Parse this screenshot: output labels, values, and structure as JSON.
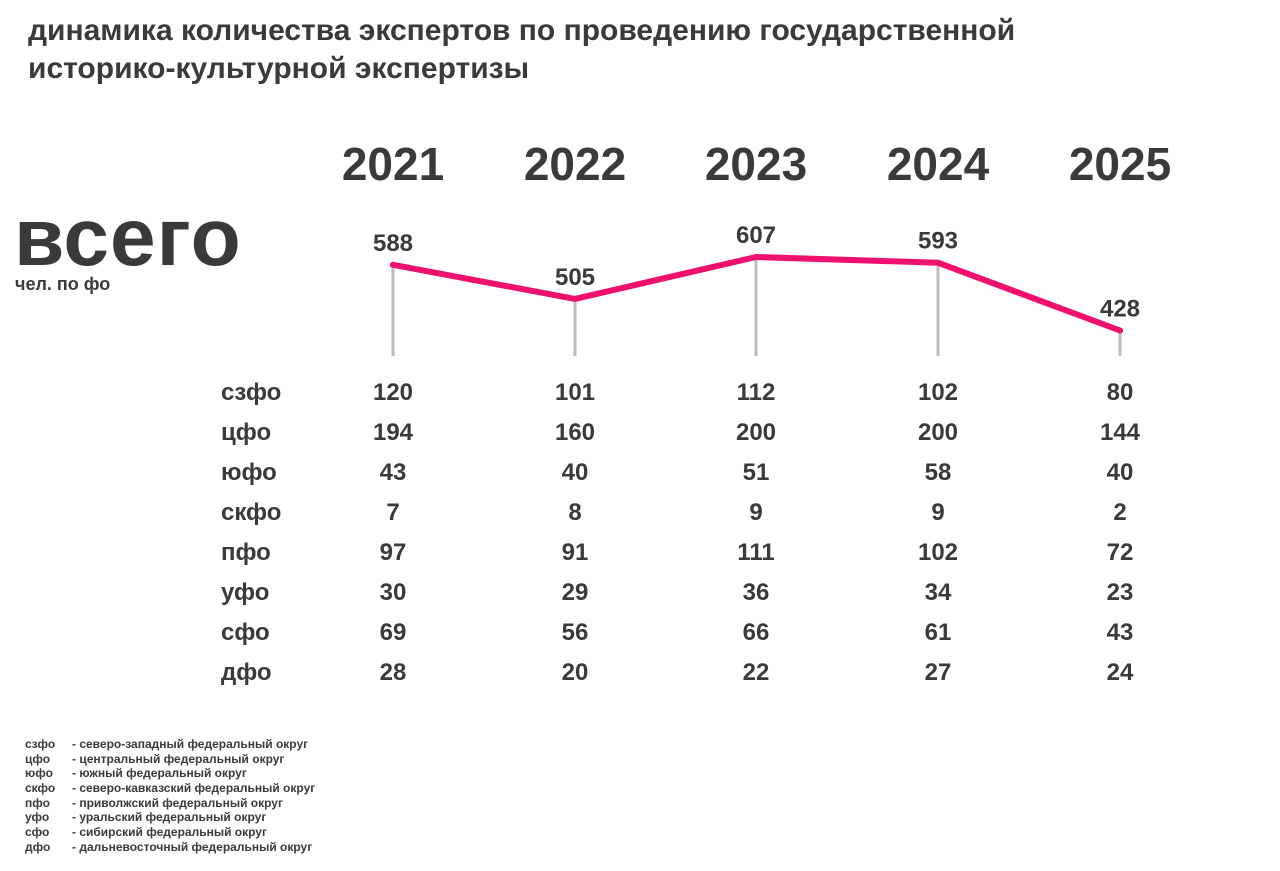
{
  "title_line1": "динамика количества экспертов по проведению государственной",
  "title_line2": "историко-культурной экспертизы",
  "total_label": "всего",
  "unit_label": "чел. по фо",
  "colors": {
    "line": "#f0106e",
    "text": "#3a3a3a",
    "stem": "#bdbdbd"
  },
  "chart_data": {
    "type": "line",
    "categories": [
      "2021",
      "2022",
      "2023",
      "2024",
      "2025"
    ],
    "series": [
      {
        "name": "всего",
        "values": [
          588,
          505,
          607,
          593,
          428
        ]
      }
    ],
    "title": "динамика количества экспертов по проведению государственной историко-культурной экспертизы",
    "ylabel": "чел. по фо"
  },
  "table": {
    "rows": [
      {
        "name": "сзфо",
        "values": [
          "120",
          "101",
          "112",
          "102",
          "80"
        ]
      },
      {
        "name": "цфо",
        "values": [
          "194",
          "160",
          "200",
          "200",
          "144"
        ]
      },
      {
        "name": "юфо",
        "values": [
          "43",
          "40",
          "51",
          "58",
          "40"
        ]
      },
      {
        "name": "скфо",
        "values": [
          "7",
          "8",
          "9",
          "9",
          "2"
        ]
      },
      {
        "name": "пфо",
        "values": [
          "97",
          "91",
          "111",
          "102",
          "72"
        ]
      },
      {
        "name": "уфо",
        "values": [
          "30",
          "29",
          "36",
          "34",
          "23"
        ]
      },
      {
        "name": "сфо",
        "values": [
          "69",
          "56",
          "66",
          "61",
          "43"
        ]
      },
      {
        "name": "дфо",
        "values": [
          "28",
          "20",
          "22",
          "27",
          "24"
        ]
      }
    ]
  },
  "legend": [
    {
      "abbr": "сзфо",
      "text": "- северо-западный федеральный округ"
    },
    {
      "abbr": "цфо",
      "text": "- центральный федеральный округ"
    },
    {
      "abbr": "юфо",
      "text": "- южный федеральный округ"
    },
    {
      "abbr": "скфо",
      "text": "- северо-кавказский федеральный округ"
    },
    {
      "abbr": "пфо",
      "text": "- приволжский федеральный округ"
    },
    {
      "abbr": "уфо",
      "text": "- уральский федеральный округ"
    },
    {
      "abbr": "сфо",
      "text": "- сибирский федеральный округ"
    },
    {
      "abbr": "дфо",
      "text": "- дальневосточный федеральный округ"
    }
  ]
}
